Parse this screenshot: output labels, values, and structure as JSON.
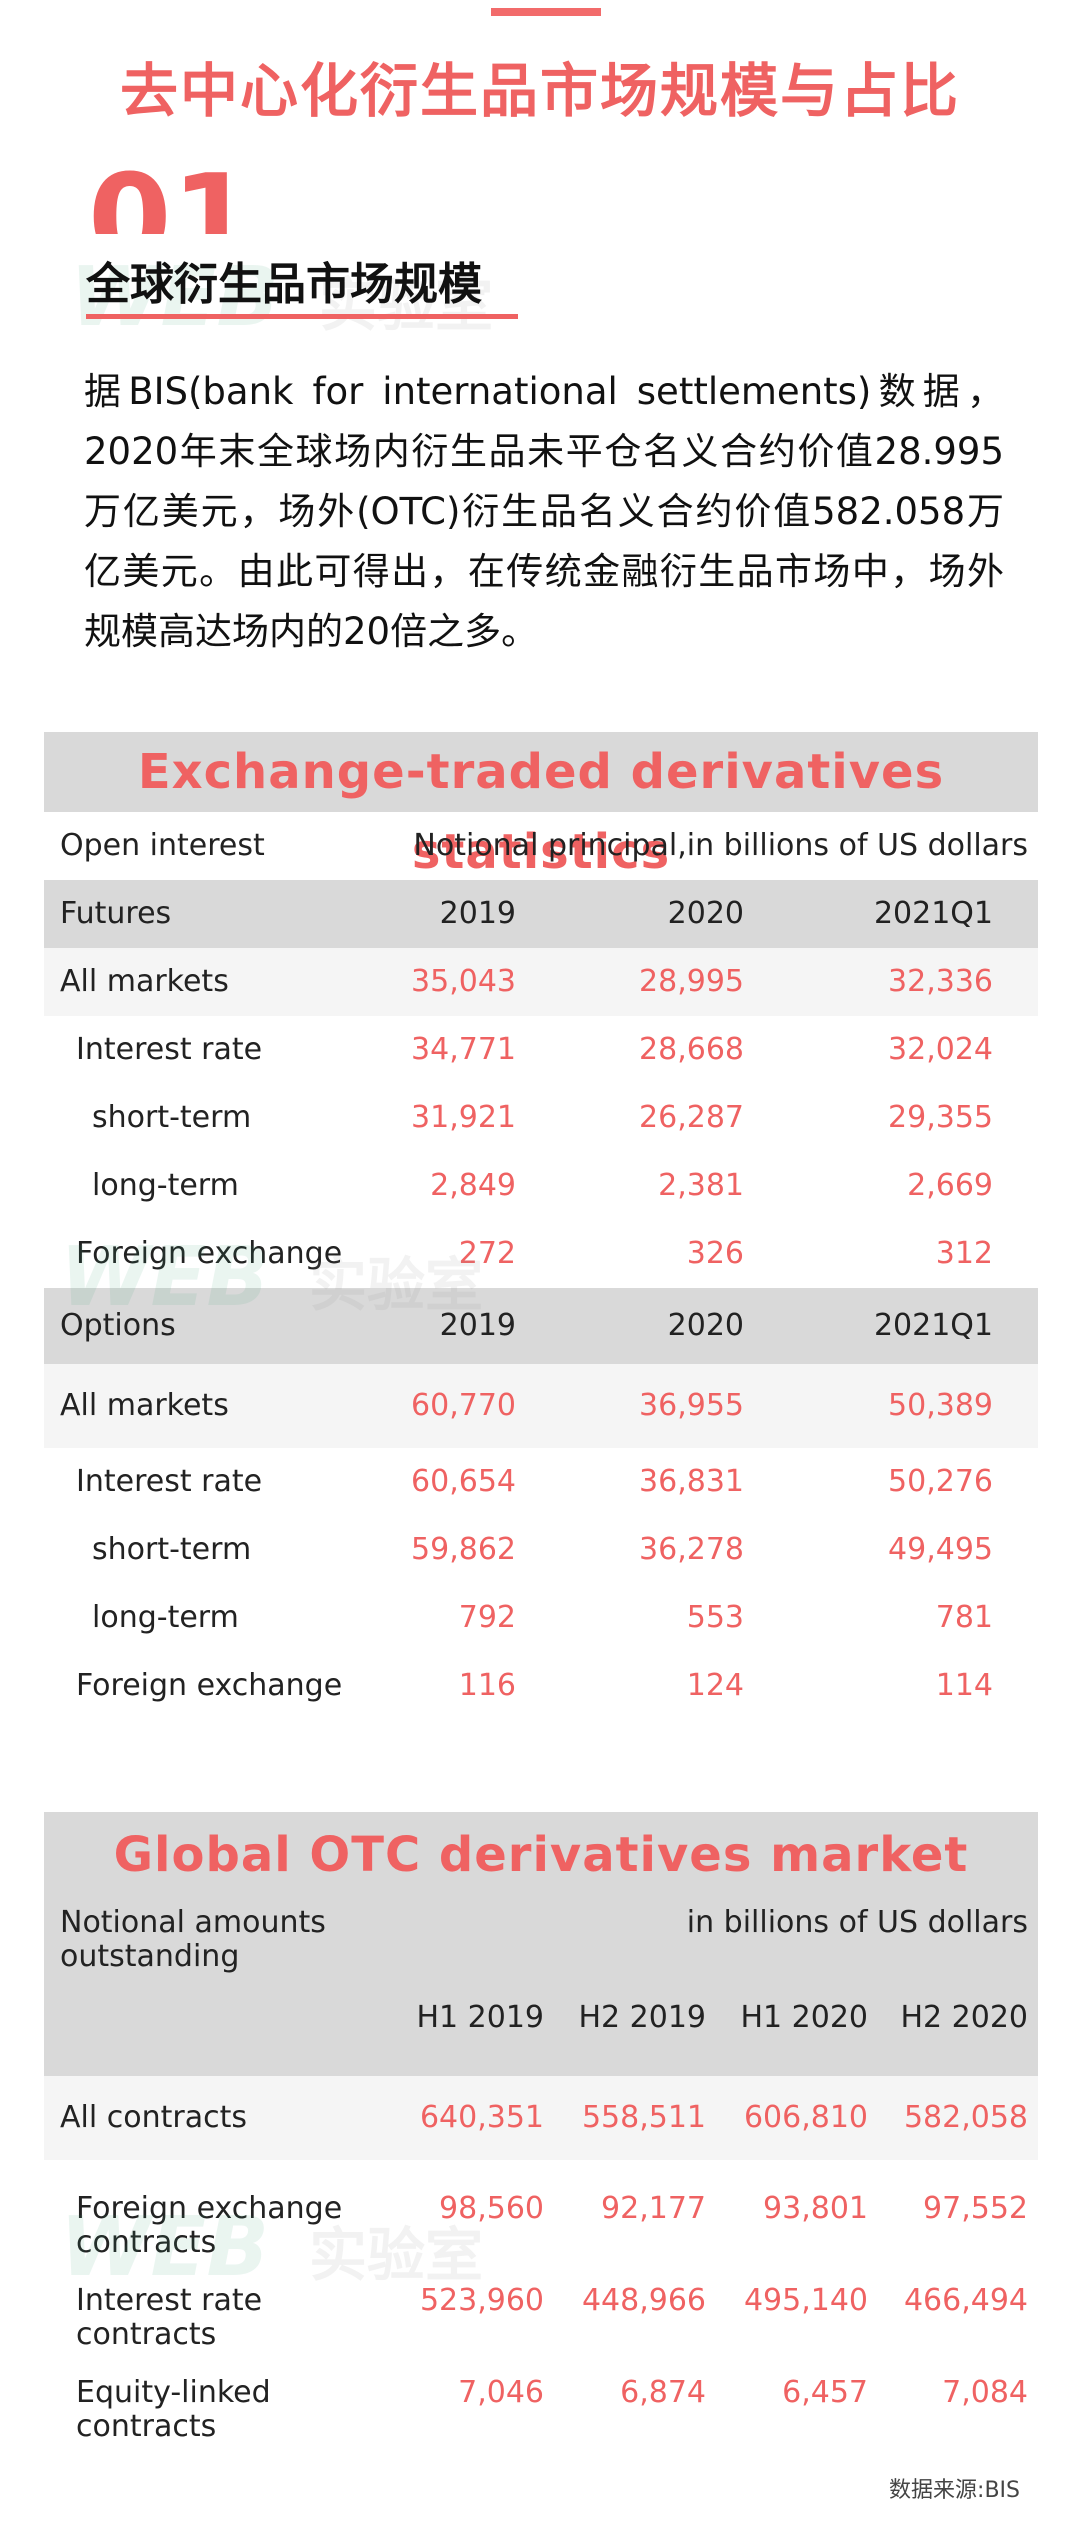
{
  "main_title": "去中心化衍生品市场规模与占比",
  "section": {
    "number": "01",
    "title": "全球衍生品市场规模"
  },
  "watermark": {
    "latin": "WEB",
    "chinese": "实验室"
  },
  "intro": "据BIS(bank for international settlements)数据，2020年末全球场内衍生品未平仓名义合约价值28.995万亿美元，场外(OTC)衍生品名义合约价值582.058万亿美元。由此可得出，在传统金融衍生品市场中，场外规模高达场内的20倍之多。",
  "colors": {
    "accent": "#ef6262",
    "header_bg": "#d9d9d9",
    "alt_row_bg": "#f5f5f5"
  },
  "exchange": {
    "title": "Exchange-traded derivatives statistics",
    "open_interest_label": "Open interest",
    "unit_label": "Notional principal,in billions of US dollars",
    "futures": {
      "label": "Futures",
      "columns": [
        "2019",
        "2020",
        "2021Q1"
      ],
      "rows": [
        {
          "label": "All markets",
          "values": [
            "35,043",
            "28,995",
            "32,336"
          ]
        },
        {
          "label": "Interest rate",
          "values": [
            "34,771",
            "28,668",
            "32,024"
          ]
        },
        {
          "label": "short-term",
          "values": [
            "31,921",
            "26,287",
            "29,355"
          ]
        },
        {
          "label": "long-term",
          "values": [
            "2,849",
            "2,381",
            "2,669"
          ]
        },
        {
          "label": "Foreign exchange",
          "values": [
            "272",
            "326",
            "312"
          ]
        }
      ]
    },
    "options": {
      "label": "Options",
      "columns": [
        "2019",
        "2020",
        "2021Q1"
      ],
      "rows": [
        {
          "label": "All markets",
          "values": [
            "60,770",
            "36,955",
            "50,389"
          ]
        },
        {
          "label": "Interest rate",
          "values": [
            "60,654",
            "36,831",
            "50,276"
          ]
        },
        {
          "label": "short-term",
          "values": [
            "59,862",
            "36,278",
            "49,495"
          ]
        },
        {
          "label": "long-term",
          "values": [
            "792",
            "553",
            "781"
          ]
        },
        {
          "label": "Foreign exchange",
          "values": [
            "116",
            "124",
            "114"
          ]
        }
      ]
    }
  },
  "otc": {
    "title": "Global OTC derivatives market",
    "notional_label_line1": "Notional amounts",
    "notional_label_line2": "outstanding",
    "unit_label": "in billions of US dollars",
    "columns": [
      "H1 2019",
      "H2 2019",
      "H1 2020",
      "H2 2020"
    ],
    "rows": [
      {
        "label1": "All contracts",
        "label2": "",
        "values": [
          "640,351",
          "558,511",
          "606,810",
          "582,058"
        ]
      },
      {
        "label1": "Foreign exchange",
        "label2": "contracts",
        "values": [
          "98,560",
          "92,177",
          "93,801",
          "97,552"
        ]
      },
      {
        "label1": "Interest rate",
        "label2": "contracts",
        "values": [
          "523,960",
          "448,966",
          "495,140",
          "466,494"
        ]
      },
      {
        "label1": "Equity-linked",
        "label2": "contracts",
        "values": [
          "7,046",
          "6,874",
          "6,457",
          "7,084"
        ]
      }
    ]
  },
  "source": "数据来源:BIS"
}
